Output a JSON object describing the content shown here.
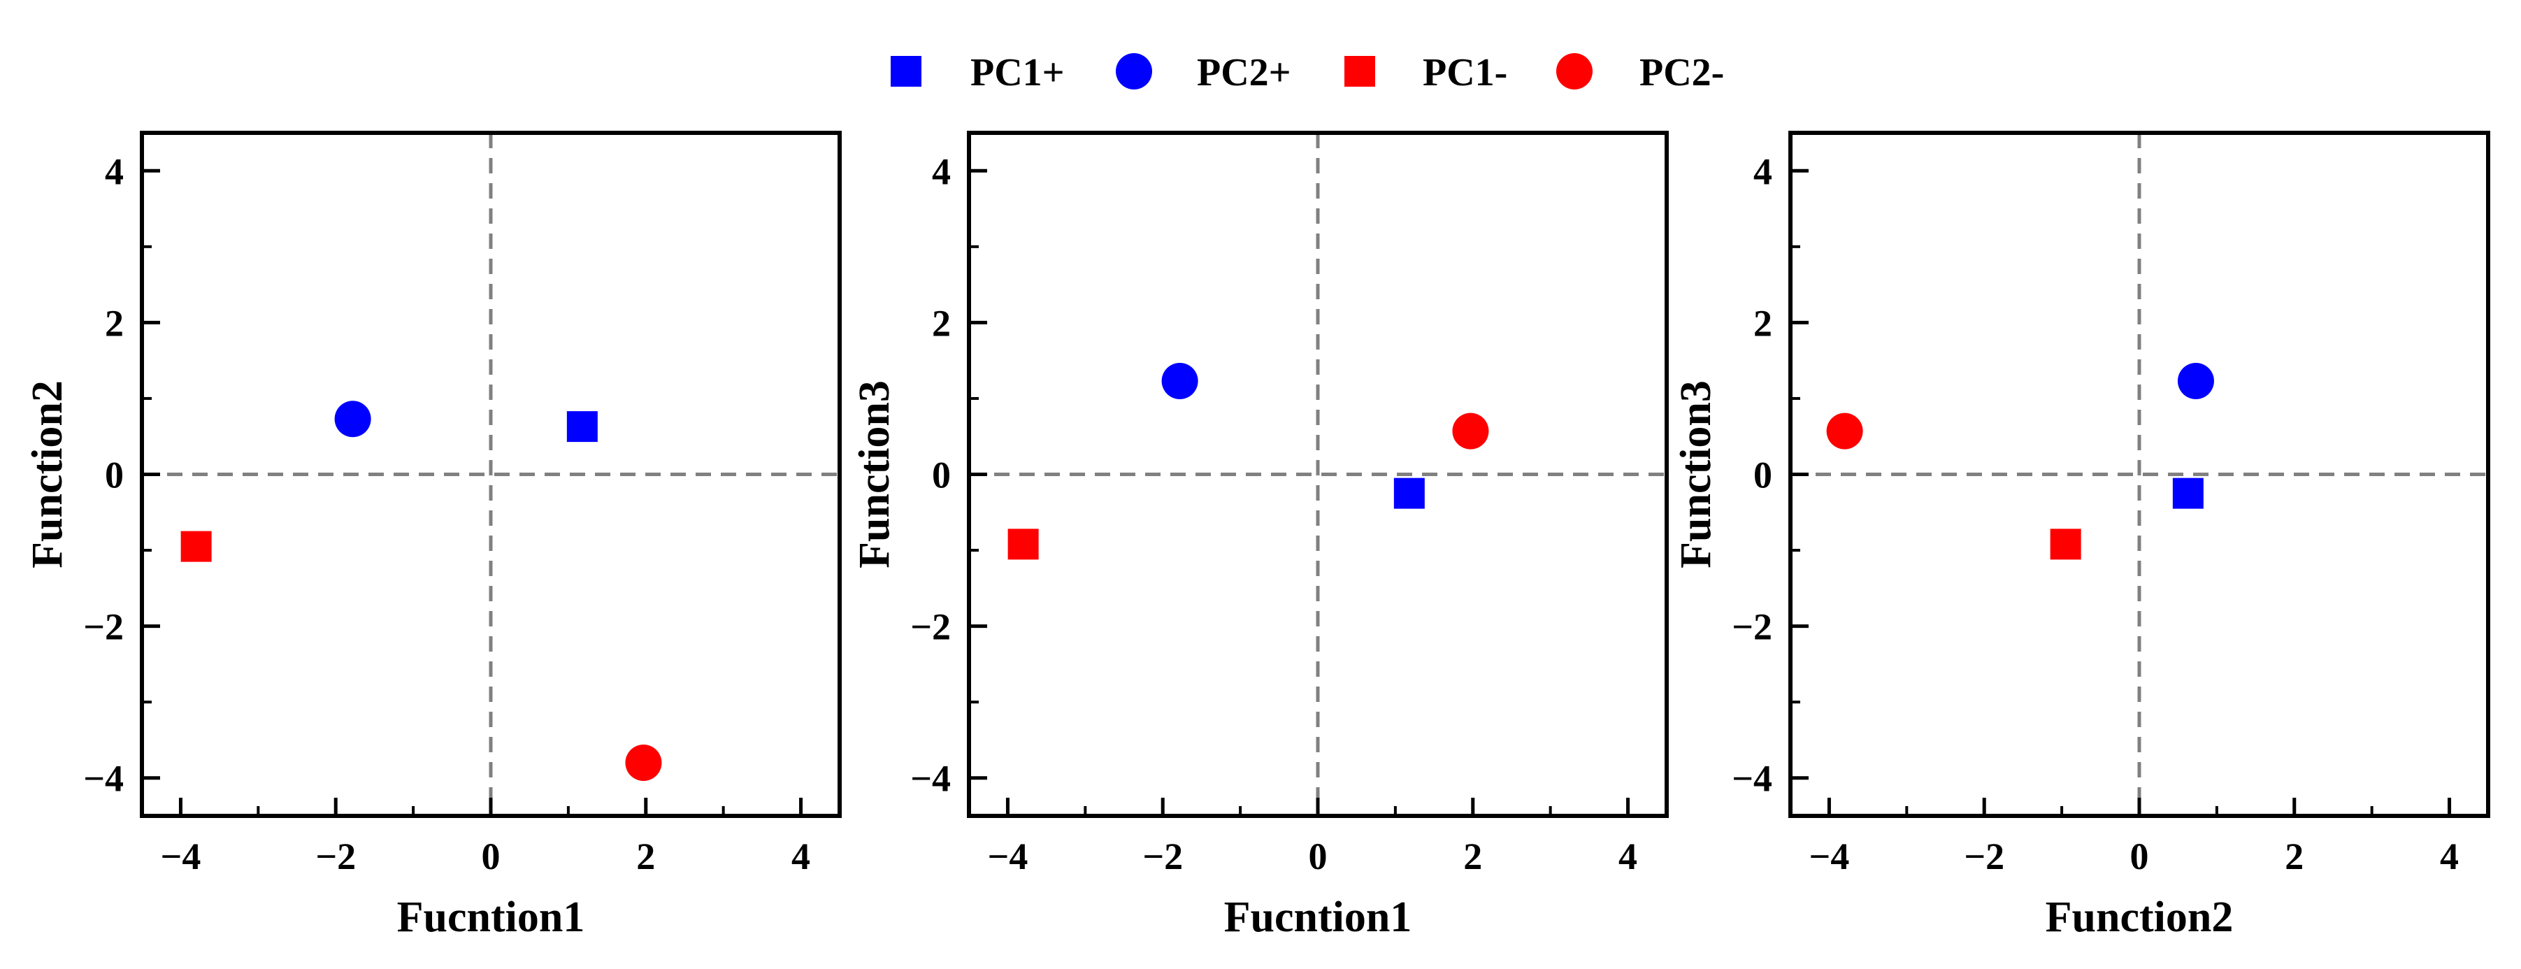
{
  "legend": [
    {
      "label": "PC1+",
      "marker": "square",
      "color": "#0000ff"
    },
    {
      "label": "PC2+",
      "marker": "circle",
      "color": "#0000ff"
    },
    {
      "label": "PC1-",
      "marker": "square",
      "color": "#ff0000"
    },
    {
      "label": "PC2-",
      "marker": "circle",
      "color": "#ff0000"
    }
  ],
  "colors": {
    "positive": "#0000ff",
    "negative": "#ff0000",
    "reference_line": "#808080",
    "axes": "#000000"
  },
  "chart_data": [
    {
      "type": "scatter",
      "xlabel": "Fucntion1",
      "ylabel": "Function2",
      "xlim": [
        -4.5,
        4.5
      ],
      "ylim": [
        -4.5,
        4.5
      ],
      "xticks": [
        -4,
        -2,
        0,
        2,
        4
      ],
      "yticks": [
        -4,
        -2,
        0,
        2,
        4
      ],
      "reference_lines": {
        "x": 0,
        "y": 0
      },
      "series": [
        {
          "name": "PC1+",
          "marker": "square",
          "color": "#0000ff",
          "x": 1.18,
          "y": 0.63
        },
        {
          "name": "PC2+",
          "marker": "circle",
          "color": "#0000ff",
          "x": -1.78,
          "y": 0.73
        },
        {
          "name": "PC1-",
          "marker": "square",
          "color": "#ff0000",
          "x": -3.8,
          "y": -0.95
        },
        {
          "name": "PC2-",
          "marker": "circle",
          "color": "#ff0000",
          "x": 1.97,
          "y": -3.8
        }
      ]
    },
    {
      "type": "scatter",
      "xlabel": "Fucntion1",
      "ylabel": "Function3",
      "xlim": [
        -4.5,
        4.5
      ],
      "ylim": [
        -4.5,
        4.5
      ],
      "xticks": [
        -4,
        -2,
        0,
        2,
        4
      ],
      "yticks": [
        -4,
        -2,
        0,
        2,
        4
      ],
      "reference_lines": {
        "x": 0,
        "y": 0
      },
      "series": [
        {
          "name": "PC1+",
          "marker": "square",
          "color": "#0000ff",
          "x": 1.18,
          "y": -0.25
        },
        {
          "name": "PC2+",
          "marker": "circle",
          "color": "#0000ff",
          "x": -1.78,
          "y": 1.23
        },
        {
          "name": "PC1-",
          "marker": "square",
          "color": "#ff0000",
          "x": -3.8,
          "y": -0.92
        },
        {
          "name": "PC2-",
          "marker": "circle",
          "color": "#ff0000",
          "x": 1.97,
          "y": 0.57
        }
      ]
    },
    {
      "type": "scatter",
      "xlabel": "Function2",
      "ylabel": "Function3",
      "xlim": [
        -4.5,
        4.5
      ],
      "ylim": [
        -4.5,
        4.5
      ],
      "xticks": [
        -4,
        -2,
        0,
        2,
        4
      ],
      "yticks": [
        -4,
        -2,
        0,
        2,
        4
      ],
      "reference_lines": {
        "x": 0,
        "y": 0
      },
      "series": [
        {
          "name": "PC1+",
          "marker": "square",
          "color": "#0000ff",
          "x": 0.63,
          "y": -0.25
        },
        {
          "name": "PC2+",
          "marker": "circle",
          "color": "#0000ff",
          "x": 0.73,
          "y": 1.23
        },
        {
          "name": "PC1-",
          "marker": "square",
          "color": "#ff0000",
          "x": -0.95,
          "y": -0.92
        },
        {
          "name": "PC2-",
          "marker": "circle",
          "color": "#ff0000",
          "x": -3.8,
          "y": 0.57
        }
      ]
    }
  ]
}
